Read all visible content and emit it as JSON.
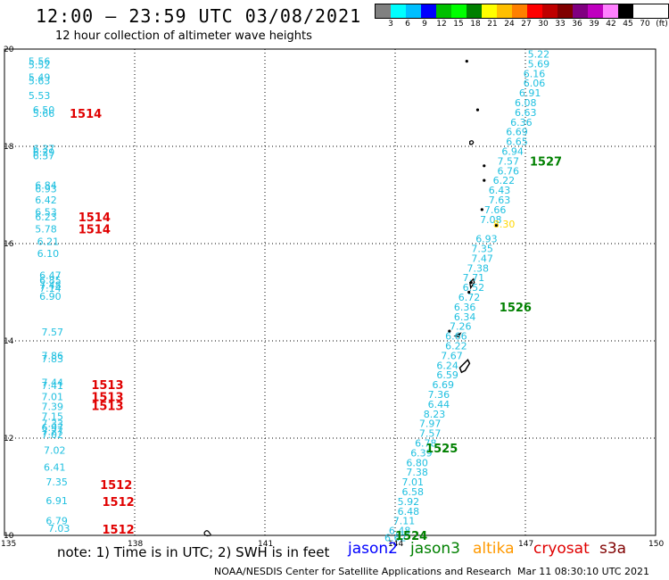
{
  "header": {
    "title": "12:00 – 23:59 UTC 03/08/2021",
    "subtitle": "12 hour collection of altimeter wave heights"
  },
  "legend": {
    "colors": [
      "#808080",
      "#00ffff",
      "#00bfff",
      "#0000ff",
      "#00bf00",
      "#00ff00",
      "#008000",
      "#ffff00",
      "#ffbf00",
      "#ff8000",
      "#ff0000",
      "#bf0000",
      "#800000",
      "#800080",
      "#bf00bf",
      "#ff80ff",
      "#000000"
    ],
    "labels": [
      "3",
      "6",
      "9",
      "12",
      "15",
      "18",
      "21",
      "24",
      "27",
      "30",
      "33",
      "36",
      "39",
      "42",
      "45",
      "70",
      "(ft)"
    ]
  },
  "map": {
    "lon_ticks": [
      "135",
      "138",
      "141",
      "144",
      "147",
      "150"
    ],
    "lat_ticks": [
      "10",
      "12",
      "14",
      "16",
      "18",
      "20"
    ]
  },
  "tracks": {
    "track_1527": {
      "color": "#20c0e0",
      "points": [
        {
          "lat": 19.9,
          "lon": 147.3,
          "v": "5.22"
        },
        {
          "lat": 19.7,
          "lon": 147.3,
          "v": "5.69"
        },
        {
          "lat": 19.5,
          "lon": 147.2,
          "v": "6.16"
        },
        {
          "lat": 19.3,
          "lon": 147.2,
          "v": "6.06"
        },
        {
          "lat": 19.1,
          "lon": 147.1,
          "v": "6.91"
        },
        {
          "lat": 18.9,
          "lon": 147.0,
          "v": "6.08"
        },
        {
          "lat": 18.7,
          "lon": 147.0,
          "v": "6.63"
        },
        {
          "lat": 18.5,
          "lon": 146.9,
          "v": "6.36"
        },
        {
          "lat": 18.3,
          "lon": 146.8,
          "v": "6.69"
        },
        {
          "lat": 18.1,
          "lon": 146.8,
          "v": "6.65"
        },
        {
          "lat": 17.9,
          "lon": 146.7,
          "v": "6.94"
        },
        {
          "lat": 17.7,
          "lon": 146.6,
          "v": "7.57"
        },
        {
          "lat": 17.5,
          "lon": 146.6,
          "v": "6.76"
        },
        {
          "lat": 17.3,
          "lon": 146.5,
          "v": "6.22"
        },
        {
          "lat": 17.1,
          "lon": 146.4,
          "v": "6.43"
        },
        {
          "lat": 16.9,
          "lon": 146.4,
          "v": "7.63"
        },
        {
          "lat": 16.7,
          "lon": 146.3,
          "v": "7.66"
        },
        {
          "lat": 16.5,
          "lon": 146.2,
          "v": "7.08"
        }
      ]
    },
    "track_1526": {
      "color": "#20c0e0",
      "points": [
        {
          "lat": 16.1,
          "lon": 146.1,
          "v": "6.93"
        },
        {
          "lat": 15.9,
          "lon": 146.0,
          "v": "7.35"
        },
        {
          "lat": 15.7,
          "lon": 146.0,
          "v": "7.47"
        },
        {
          "lat": 15.5,
          "lon": 145.9,
          "v": "7.38"
        },
        {
          "lat": 15.3,
          "lon": 145.8,
          "v": "7.71"
        },
        {
          "lat": 15.1,
          "lon": 145.8,
          "v": "6.52"
        },
        {
          "lat": 14.9,
          "lon": 145.7,
          "v": "6.72"
        },
        {
          "lat": 14.7,
          "lon": 145.6,
          "v": "6.36"
        },
        {
          "lat": 14.5,
          "lon": 145.6,
          "v": "6.34"
        },
        {
          "lat": 14.3,
          "lon": 145.5,
          "v": "7.26"
        },
        {
          "lat": 14.1,
          "lon": 145.4,
          "v": "6.66"
        },
        {
          "lat": 13.9,
          "lon": 145.4,
          "v": "6.22"
        },
        {
          "lat": 13.7,
          "lon": 145.3,
          "v": "7.67"
        },
        {
          "lat": 13.5,
          "lon": 145.2,
          "v": "6.24"
        },
        {
          "lat": 13.3,
          "lon": 145.2,
          "v": "6.59"
        },
        {
          "lat": 13.1,
          "lon": 145.1,
          "v": "6.69"
        },
        {
          "lat": 12.9,
          "lon": 145.0,
          "v": "7.36"
        },
        {
          "lat": 12.7,
          "lon": 145.0,
          "v": "6.44"
        },
        {
          "lat": 12.5,
          "lon": 144.9,
          "v": "8.23"
        },
        {
          "lat": 12.3,
          "lon": 144.8,
          "v": "7.97"
        },
        {
          "lat": 12.1,
          "lon": 144.8,
          "v": "7.57"
        },
        {
          "lat": 11.9,
          "lon": 144.7,
          "v": "6.78"
        }
      ]
    },
    "track_1525": {
      "color": "#20c0e0",
      "points": [
        {
          "lat": 11.7,
          "lon": 144.6,
          "v": "6.39"
        },
        {
          "lat": 11.5,
          "lon": 144.5,
          "v": "6.80"
        },
        {
          "lat": 11.3,
          "lon": 144.5,
          "v": "7.38"
        },
        {
          "lat": 11.1,
          "lon": 144.4,
          "v": "7.01"
        },
        {
          "lat": 10.9,
          "lon": 144.4,
          "v": "6.58"
        },
        {
          "lat": 10.7,
          "lon": 144.3,
          "v": "5.92"
        },
        {
          "lat": 10.5,
          "lon": 144.3,
          "v": "6.48"
        },
        {
          "lat": 10.3,
          "lon": 144.2,
          "v": "7.11"
        },
        {
          "lat": 10.1,
          "lon": 144.1,
          "v": "6.48"
        },
        {
          "lat": 9.95,
          "lon": 144.0,
          "v": "6.62"
        }
      ]
    },
    "track_left": {
      "color": "#20c0e0",
      "points": [
        {
          "lat": 19.75,
          "lon": 135.8,
          "v": "5.56"
        },
        {
          "lat": 19.68,
          "lon": 135.8,
          "v": "5.52"
        },
        {
          "lat": 19.42,
          "lon": 135.8,
          "v": "5.49"
        },
        {
          "lat": 19.35,
          "lon": 135.8,
          "v": "5.63"
        },
        {
          "lat": 19.05,
          "lon": 135.8,
          "v": "5.53"
        },
        {
          "lat": 18.75,
          "lon": 135.9,
          "v": "6.50"
        },
        {
          "lat": 18.68,
          "lon": 135.9,
          "v": "5.66"
        },
        {
          "lat": 17.95,
          "lon": 135.9,
          "v": "6.37"
        },
        {
          "lat": 17.88,
          "lon": 135.9,
          "v": "6.29"
        },
        {
          "lat": 17.81,
          "lon": 135.9,
          "v": "6.37"
        },
        {
          "lat": 17.2,
          "lon": 135.95,
          "v": "6.84"
        },
        {
          "lat": 17.13,
          "lon": 135.95,
          "v": "6.93"
        },
        {
          "lat": 16.9,
          "lon": 135.95,
          "v": "6.42"
        },
        {
          "lat": 16.65,
          "lon": 135.95,
          "v": "6.53"
        },
        {
          "lat": 16.55,
          "lon": 135.95,
          "v": "6.23"
        },
        {
          "lat": 16.3,
          "lon": 135.95,
          "v": "5.78"
        },
        {
          "lat": 16.05,
          "lon": 136.0,
          "v": "6.21"
        },
        {
          "lat": 15.8,
          "lon": 136.0,
          "v": "6.10"
        },
        {
          "lat": 15.35,
          "lon": 136.05,
          "v": "6.47"
        },
        {
          "lat": 15.25,
          "lon": 136.05,
          "v": "6.85"
        },
        {
          "lat": 15.15,
          "lon": 136.05,
          "v": "7.48"
        },
        {
          "lat": 15.08,
          "lon": 136.05,
          "v": "7.14"
        },
        {
          "lat": 14.92,
          "lon": 136.05,
          "v": "6.90"
        },
        {
          "lat": 14.18,
          "lon": 136.1,
          "v": "7.57"
        },
        {
          "lat": 13.7,
          "lon": 136.1,
          "v": "7.86"
        },
        {
          "lat": 13.63,
          "lon": 136.1,
          "v": "7.83"
        },
        {
          "lat": 13.15,
          "lon": 136.1,
          "v": "7.44"
        },
        {
          "lat": 13.08,
          "lon": 136.1,
          "v": "7.41"
        },
        {
          "lat": 12.85,
          "lon": 136.1,
          "v": "7.01"
        },
        {
          "lat": 12.65,
          "lon": 136.1,
          "v": "7.39"
        },
        {
          "lat": 12.45,
          "lon": 136.1,
          "v": "7.15"
        },
        {
          "lat": 12.3,
          "lon": 136.1,
          "v": "7.33"
        },
        {
          "lat": 12.22,
          "lon": 136.1,
          "v": "6.97"
        },
        {
          "lat": 12.14,
          "lon": 136.1,
          "v": "7.27"
        },
        {
          "lat": 12.07,
          "lon": 136.1,
          "v": "7.02"
        },
        {
          "lat": 11.75,
          "lon": 136.15,
          "v": "7.02"
        },
        {
          "lat": 11.4,
          "lon": 136.15,
          "v": "6.41"
        },
        {
          "lat": 11.1,
          "lon": 136.2,
          "v": "7.35"
        },
        {
          "lat": 10.72,
          "lon": 136.2,
          "v": "6.91"
        },
        {
          "lat": 10.3,
          "lon": 136.2,
          "v": "6.79"
        },
        {
          "lat": 10.15,
          "lon": 136.25,
          "v": "7.03"
        }
      ]
    },
    "altika_point": {
      "lat": 16.4,
      "lon": 146.3,
      "v": "8.30",
      "color": "#ffd700"
    }
  },
  "pass_labels": [
    {
      "lat": 17.7,
      "lon": 147.1,
      "text": "1527",
      "color": "#008000"
    },
    {
      "lat": 14.7,
      "lon": 146.4,
      "text": "1526",
      "color": "#008000"
    },
    {
      "lat": 11.8,
      "lon": 144.7,
      "text": "1525",
      "color": "#008000"
    },
    {
      "lat": 10.0,
      "lon": 144.0,
      "text": "1524",
      "color": "#008000"
    },
    {
      "lat": 18.68,
      "lon": 136.5,
      "text": "1514",
      "color": "#e00000"
    },
    {
      "lat": 16.55,
      "lon": 136.7,
      "text": "1514",
      "color": "#e00000"
    },
    {
      "lat": 16.3,
      "lon": 136.7,
      "text": "1514",
      "color": "#e00000"
    },
    {
      "lat": 13.1,
      "lon": 137.0,
      "text": "1513",
      "color": "#e00000"
    },
    {
      "lat": 12.85,
      "lon": 137.0,
      "text": "1513",
      "color": "#e00000"
    },
    {
      "lat": 12.67,
      "lon": 137.0,
      "text": "1513",
      "color": "#e00000"
    },
    {
      "lat": 11.05,
      "lon": 137.2,
      "text": "1512",
      "color": "#e00000"
    },
    {
      "lat": 10.7,
      "lon": 137.25,
      "text": "1512",
      "color": "#e00000"
    },
    {
      "lat": 10.13,
      "lon": 137.25,
      "text": "1512",
      "color": "#e00000"
    }
  ],
  "footer": {
    "note": "note:  1) Time is in UTC;  2) SWH is in feet",
    "satellites": [
      {
        "name": "jason2",
        "color": "#0000ff"
      },
      {
        "name": "jason3",
        "color": "#008000"
      },
      {
        "name": "altika",
        "color": "#ff9900"
      },
      {
        "name": "cryosat",
        "color": "#e00000"
      },
      {
        "name": "s3a",
        "color": "#800000"
      }
    ],
    "credit": "NOAA/NESDIS Center for Satellite Applications and Research",
    "timestamp": "Mar 11 08:30:10 UTC 2021"
  }
}
